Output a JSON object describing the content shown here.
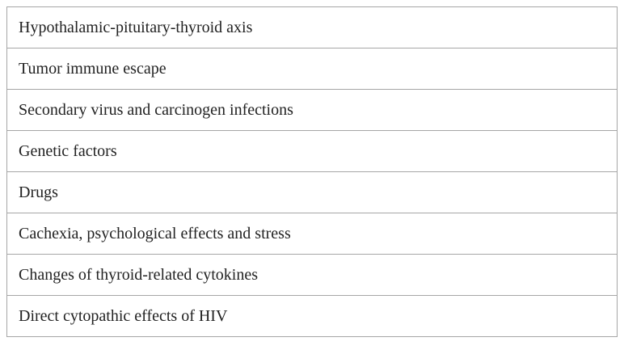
{
  "table": {
    "rows": [
      [
        "Hypothalamic-pituitary-thyroid axis"
      ],
      [
        "Tumor immune escape"
      ],
      [
        "Secondary virus and carcinogen infections"
      ],
      [
        "Genetic factors"
      ],
      [
        "Drugs"
      ],
      [
        "Cachexia, psychological effects and stress"
      ],
      [
        "Changes of thyroid-related cytokines"
      ],
      [
        "Direct cytopathic effects of HIV"
      ]
    ]
  }
}
